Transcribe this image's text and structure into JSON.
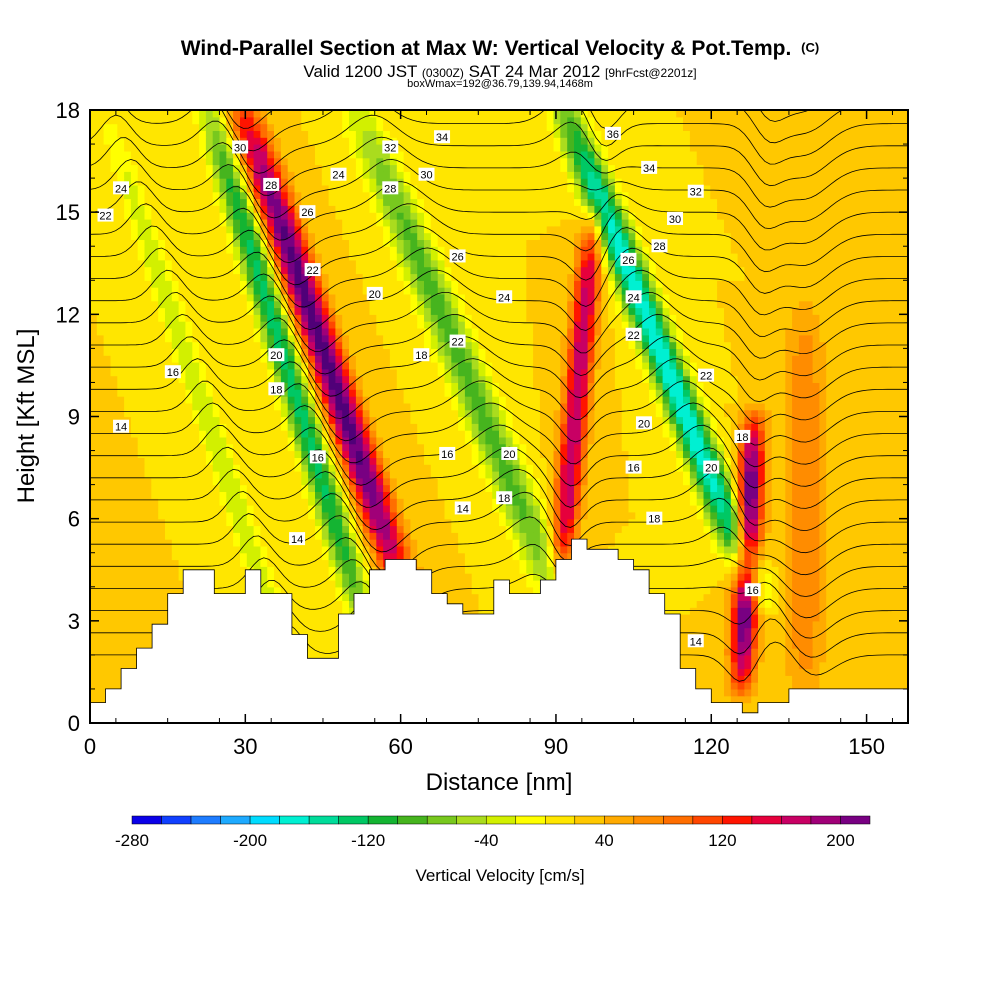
{
  "chart_data": {
    "type": "heatmap",
    "title": "Wind-Parallel Section at Max W: Vertical Velocity & Pot.Temp.",
    "title_mark": "(C)",
    "subtitle": {
      "valid": "Valid 1200 JST",
      "utc": "(0300Z)",
      "date": "SAT 24 Mar 2012",
      "forecast": "[9hrFcst@2201z]"
    },
    "subtitle2": "boxWmax=192@36.79,139.94,1468m",
    "xlabel": "Distance [nm]",
    "ylabel": "Height [Kft MSL]",
    "xlim": [
      0,
      158
    ],
    "ylim": [
      0,
      18
    ],
    "xticks": [
      "0",
      "30",
      "60",
      "90",
      "120",
      "150"
    ],
    "xtick_values": [
      0,
      30,
      60,
      90,
      120,
      150
    ],
    "yticks": [
      "0",
      "3",
      "6",
      "9",
      "12",
      "15",
      "18"
    ],
    "ytick_values": [
      0,
      3,
      6,
      9,
      12,
      15,
      18
    ],
    "colorbar": {
      "label": "Vertical Velocity [cm/s]",
      "tick_labels": [
        "-280",
        "-200",
        "-120",
        "-40",
        "40",
        "120",
        "200"
      ],
      "tick_values": [
        -280,
        -200,
        -120,
        -40,
        40,
        120,
        200
      ],
      "levels": [
        -280,
        -260,
        -240,
        -220,
        -200,
        -180,
        -160,
        -140,
        -120,
        -100,
        -80,
        -60,
        -40,
        -20,
        0,
        20,
        40,
        60,
        80,
        100,
        120,
        140,
        160,
        180,
        200,
        220
      ],
      "colors": [
        "#0a00e8",
        "#1040ff",
        "#1e7cff",
        "#1eaaff",
        "#00dcff",
        "#00f0d2",
        "#00dc9a",
        "#00c864",
        "#14b432",
        "#46b41e",
        "#78c81e",
        "#aadc1e",
        "#d2f000",
        "#ffff00",
        "#ffe600",
        "#ffc800",
        "#ffaa00",
        "#ff8c00",
        "#ff6e00",
        "#ff4600",
        "#ff1400",
        "#e6003c",
        "#c80064",
        "#a00078",
        "#780082",
        "#500078"
      ]
    },
    "background_w": 20,
    "w_features": [
      {
        "x": 22,
        "y": [
          1,
          17.5
        ],
        "slope": -2.2,
        "w": -60,
        "width": 2.5
      },
      {
        "x": 38,
        "y": [
          3,
          18
        ],
        "slope": -2.0,
        "w": -150,
        "width": 3.0
      },
      {
        "x": 45,
        "y": [
          4,
          18
        ],
        "slope": -2.2,
        "w": 210,
        "width": 3.5
      },
      {
        "x": 72,
        "y": [
          3,
          18
        ],
        "slope": -2.7,
        "w": -110,
        "width": 4.0
      },
      {
        "x": 94,
        "y": [
          4.5,
          14.5
        ],
        "slope": 0.6,
        "w": 160,
        "width": 2.5
      },
      {
        "x": 110,
        "y": [
          4,
          18
        ],
        "slope": -2.6,
        "w": -200,
        "width": 3.5
      },
      {
        "x": 127,
        "y": [
          1.5,
          8.5
        ],
        "slope": 0.3,
        "w": 210,
        "width": 2.5
      },
      {
        "x": 138,
        "y": [
          1,
          12
        ],
        "slope": 0.0,
        "w": 60,
        "width": 4.0
      }
    ],
    "terrain": {
      "x": [
        0,
        3,
        3,
        6,
        6,
        9,
        9,
        12,
        12,
        15,
        15,
        18,
        18,
        24,
        24,
        30,
        30,
        33,
        33,
        39,
        39,
        42,
        42,
        45,
        45,
        48,
        48,
        51,
        51,
        54,
        54,
        57,
        57,
        63,
        63,
        66,
        66,
        69,
        69,
        72,
        72,
        75,
        75,
        78,
        78,
        81,
        81,
        87,
        87,
        90,
        90,
        93,
        93,
        96,
        96,
        102,
        102,
        105,
        105,
        108,
        108,
        111,
        111,
        114,
        114,
        117,
        117,
        120,
        120,
        123,
        123,
        126,
        126,
        129,
        129,
        132,
        132,
        135,
        135,
        144,
        144,
        153,
        153,
        158
      ],
      "y": [
        0.6,
        0.6,
        1.0,
        1.0,
        1.6,
        1.6,
        2.2,
        2.2,
        2.9,
        2.9,
        3.8,
        3.8,
        4.5,
        4.5,
        3.8,
        3.8,
        4.5,
        4.5,
        3.8,
        3.8,
        2.6,
        2.6,
        1.9,
        1.9,
        1.9,
        1.9,
        3.2,
        3.2,
        3.8,
        3.8,
        4.5,
        4.5,
        4.8,
        4.8,
        4.5,
        4.5,
        3.8,
        3.8,
        3.5,
        3.5,
        3.2,
        3.2,
        3.2,
        3.2,
        4.2,
        4.2,
        3.8,
        3.8,
        4.2,
        4.2,
        4.8,
        4.8,
        5.4,
        5.4,
        5.1,
        5.1,
        4.8,
        4.8,
        4.5,
        4.5,
        3.8,
        3.8,
        3.2,
        3.2,
        1.6,
        1.6,
        1.0,
        1.0,
        0.6,
        0.6,
        0.6,
        0.6,
        0.3,
        0.3,
        0.6,
        0.6,
        0.6,
        0.6,
        1.0,
        1.0,
        1.0,
        1.0,
        1.0,
        1.0
      ]
    },
    "theta_contours": {
      "levels": [
        12,
        13,
        14,
        15,
        16,
        17,
        18,
        19,
        20,
        21,
        22,
        23,
        24,
        25,
        26,
        27,
        28,
        29,
        30,
        31,
        32,
        33,
        34,
        35,
        36,
        37,
        38
      ],
      "base_height": 2.0,
      "spacing": 0.65
    },
    "contour_labels": [
      {
        "text": "30",
        "x": 29,
        "y": 16.9
      },
      {
        "text": "24",
        "x": 6,
        "y": 15.7
      },
      {
        "text": "22",
        "x": 3,
        "y": 14.9
      },
      {
        "text": "28",
        "x": 35,
        "y": 15.8
      },
      {
        "text": "26",
        "x": 42,
        "y": 15.0
      },
      {
        "text": "24",
        "x": 48,
        "y": 16.1
      },
      {
        "text": "22",
        "x": 43,
        "y": 13.3
      },
      {
        "text": "32",
        "x": 58,
        "y": 16.9
      },
      {
        "text": "34",
        "x": 68,
        "y": 17.2
      },
      {
        "text": "30",
        "x": 65,
        "y": 16.1
      },
      {
        "text": "28",
        "x": 58,
        "y": 15.7
      },
      {
        "text": "20",
        "x": 55,
        "y": 12.6
      },
      {
        "text": "26",
        "x": 71,
        "y": 13.7
      },
      {
        "text": "24",
        "x": 80,
        "y": 12.5
      },
      {
        "text": "22",
        "x": 71,
        "y": 11.2
      },
      {
        "text": "18",
        "x": 64,
        "y": 10.8
      },
      {
        "text": "16",
        "x": 16,
        "y": 10.3
      },
      {
        "text": "14",
        "x": 6,
        "y": 8.7
      },
      {
        "text": "20",
        "x": 36,
        "y": 10.8
      },
      {
        "text": "18",
        "x": 36,
        "y": 9.8
      },
      {
        "text": "16",
        "x": 44,
        "y": 7.8
      },
      {
        "text": "14",
        "x": 40,
        "y": 5.4
      },
      {
        "text": "16",
        "x": 69,
        "y": 7.9
      },
      {
        "text": "14",
        "x": 72,
        "y": 6.3
      },
      {
        "text": "20",
        "x": 81,
        "y": 7.9
      },
      {
        "text": "18",
        "x": 80,
        "y": 6.6
      },
      {
        "text": "36",
        "x": 101,
        "y": 17.3
      },
      {
        "text": "34",
        "x": 108,
        "y": 16.3
      },
      {
        "text": "32",
        "x": 117,
        "y": 15.6
      },
      {
        "text": "30",
        "x": 113,
        "y": 14.8
      },
      {
        "text": "28",
        "x": 110,
        "y": 14.0
      },
      {
        "text": "26",
        "x": 104,
        "y": 13.6
      },
      {
        "text": "24",
        "x": 105,
        "y": 12.5
      },
      {
        "text": "22",
        "x": 105,
        "y": 11.4
      },
      {
        "text": "22",
        "x": 119,
        "y": 10.2
      },
      {
        "text": "20",
        "x": 107,
        "y": 8.8
      },
      {
        "text": "16",
        "x": 105,
        "y": 7.5
      },
      {
        "text": "18",
        "x": 109,
        "y": 6.0
      },
      {
        "text": "20",
        "x": 120,
        "y": 7.5
      },
      {
        "text": "18",
        "x": 126,
        "y": 8.4
      },
      {
        "text": "16",
        "x": 128,
        "y": 3.9
      },
      {
        "text": "14",
        "x": 117,
        "y": 2.4
      }
    ]
  }
}
